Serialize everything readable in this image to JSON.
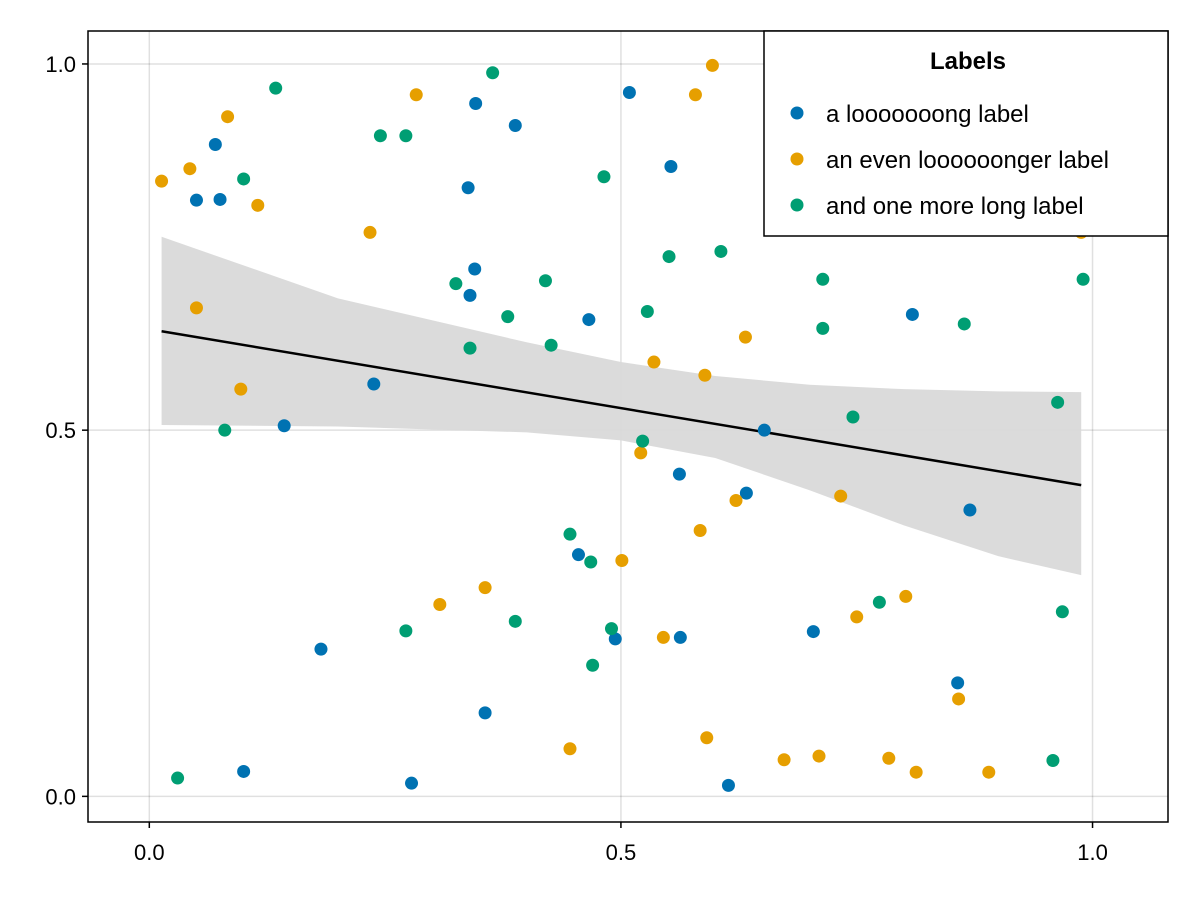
{
  "chart_data": {
    "type": "scatter",
    "title": "",
    "xlabel": "",
    "ylabel": "",
    "xlim": [
      -0.065,
      1.08
    ],
    "ylim": [
      -0.035,
      1.045
    ],
    "grid": true,
    "x_ticks": [
      {
        "value": 0.0,
        "label": "0.0"
      },
      {
        "value": 0.5,
        "label": "0.5"
      },
      {
        "value": 1.0,
        "label": "1.0"
      }
    ],
    "y_ticks": [
      {
        "value": 0.0,
        "label": "0.0"
      },
      {
        "value": 0.5,
        "label": "0.5"
      },
      {
        "value": 1.0,
        "label": "1.0"
      }
    ],
    "legend": {
      "title": "Labels",
      "placement": "top-right"
    },
    "series": [
      {
        "name": "a looooooong label",
        "color": "#0072B2",
        "points": [
          [
            0.05,
            0.814
          ],
          [
            0.075,
            0.815
          ],
          [
            0.07,
            0.89
          ],
          [
            0.1,
            0.034
          ],
          [
            0.143,
            0.506
          ],
          [
            0.182,
            0.201
          ],
          [
            0.238,
            0.563
          ],
          [
            0.278,
            0.018
          ],
          [
            0.338,
            0.831
          ],
          [
            0.34,
            0.684
          ],
          [
            0.345,
            0.72
          ],
          [
            0.346,
            0.946
          ],
          [
            0.356,
            0.114
          ],
          [
            0.388,
            0.916
          ],
          [
            0.455,
            0.33
          ],
          [
            0.466,
            0.651
          ],
          [
            0.494,
            0.215
          ],
          [
            0.509,
            0.961
          ],
          [
            0.553,
            0.86
          ],
          [
            0.562,
            0.44
          ],
          [
            0.563,
            0.217
          ],
          [
            0.614,
            0.015
          ],
          [
            0.633,
            0.414
          ],
          [
            0.652,
            0.5
          ],
          [
            0.704,
            0.225
          ],
          [
            0.809,
            0.658
          ],
          [
            0.857,
            0.155
          ],
          [
            0.87,
            0.391
          ]
        ]
      },
      {
        "name": "an even loooooonger label",
        "color": "#E69F00",
        "points": [
          [
            0.013,
            0.84
          ],
          [
            0.043,
            0.857
          ],
          [
            0.05,
            0.667
          ],
          [
            0.083,
            0.928
          ],
          [
            0.097,
            0.556
          ],
          [
            0.115,
            0.807
          ],
          [
            0.234,
            0.77
          ],
          [
            0.283,
            0.958
          ],
          [
            0.308,
            0.262
          ],
          [
            0.356,
            0.285
          ],
          [
            0.446,
            0.065
          ],
          [
            0.501,
            0.322
          ],
          [
            0.521,
            0.469
          ],
          [
            0.535,
            0.593
          ],
          [
            0.545,
            0.217
          ],
          [
            0.579,
            0.958
          ],
          [
            0.584,
            0.363
          ],
          [
            0.589,
            0.575
          ],
          [
            0.591,
            0.08
          ],
          [
            0.597,
            0.998
          ],
          [
            0.622,
            0.404
          ],
          [
            0.632,
            0.627
          ],
          [
            0.673,
            0.05
          ],
          [
            0.71,
            0.055
          ],
          [
            0.733,
            0.41
          ],
          [
            0.75,
            0.245
          ],
          [
            0.784,
            0.052
          ],
          [
            0.802,
            0.273
          ],
          [
            0.813,
            0.033
          ],
          [
            0.858,
            0.133
          ],
          [
            0.89,
            0.033
          ],
          [
            0.988,
            0.77
          ]
        ]
      },
      {
        "name": "and one more long label",
        "color": "#009E73",
        "points": [
          [
            0.03,
            0.025
          ],
          [
            0.08,
            0.5
          ],
          [
            0.1,
            0.843
          ],
          [
            0.134,
            0.967
          ],
          [
            0.245,
            0.902
          ],
          [
            0.272,
            0.902
          ],
          [
            0.272,
            0.226
          ],
          [
            0.325,
            0.7
          ],
          [
            0.34,
            0.612
          ],
          [
            0.364,
            0.988
          ],
          [
            0.38,
            0.655
          ],
          [
            0.388,
            0.239
          ],
          [
            0.42,
            0.704
          ],
          [
            0.426,
            0.616
          ],
          [
            0.446,
            0.358
          ],
          [
            0.468,
            0.32
          ],
          [
            0.47,
            0.179
          ],
          [
            0.482,
            0.846
          ],
          [
            0.49,
            0.229
          ],
          [
            0.523,
            0.485
          ],
          [
            0.528,
            0.662
          ],
          [
            0.551,
            0.737
          ],
          [
            0.606,
            0.744
          ],
          [
            0.714,
            0.706
          ],
          [
            0.714,
            0.639
          ],
          [
            0.746,
            0.518
          ],
          [
            0.774,
            0.265
          ],
          [
            0.864,
            0.645
          ],
          [
            0.958,
            0.049
          ],
          [
            0.963,
            0.538
          ],
          [
            0.968,
            0.252
          ],
          [
            0.99,
            0.706
          ]
        ]
      }
    ],
    "regression": {
      "color": "#000000",
      "band_color": "#d9d9d9",
      "x_range": [
        0.013,
        0.988
      ],
      "line": [
        [
          0.013,
          0.635
        ],
        [
          0.988,
          0.425
        ]
      ],
      "band_upper": [
        [
          0.013,
          0.764
        ],
        [
          0.2,
          0.68
        ],
        [
          0.4,
          0.62
        ],
        [
          0.5,
          0.593
        ],
        [
          0.6,
          0.574
        ],
        [
          0.7,
          0.562
        ],
        [
          0.8,
          0.556
        ],
        [
          0.9,
          0.553
        ],
        [
          0.988,
          0.552
        ]
      ],
      "band_lower": [
        [
          0.013,
          0.507
        ],
        [
          0.2,
          0.505
        ],
        [
          0.4,
          0.497
        ],
        [
          0.5,
          0.486
        ],
        [
          0.6,
          0.462
        ],
        [
          0.7,
          0.418
        ],
        [
          0.8,
          0.37
        ],
        [
          0.9,
          0.328
        ],
        [
          0.988,
          0.302
        ]
      ]
    }
  }
}
